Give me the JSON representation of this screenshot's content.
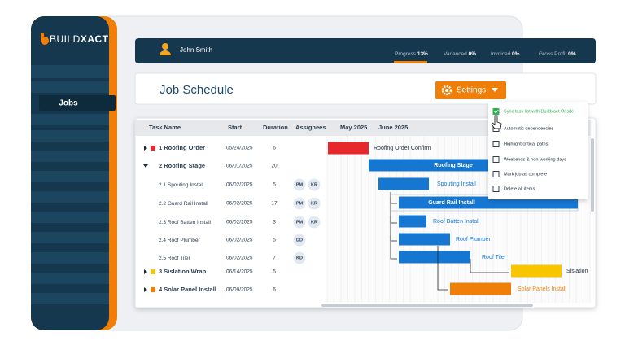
{
  "brand": {
    "prefix": "BUILD",
    "suffix": "XACT"
  },
  "sidebar": {
    "items": [
      "Jobs"
    ]
  },
  "header": {
    "user": "John Smith",
    "stats": [
      {
        "label": "Progress",
        "value": "13%"
      },
      {
        "label": "Varianced",
        "value": "0%"
      },
      {
        "label": "Invoiced",
        "value": "0%"
      },
      {
        "label": "Gross Profit",
        "value": "0%"
      }
    ]
  },
  "page": {
    "title": "Job Schedule",
    "settings_button": "Settings"
  },
  "settings_menu": {
    "items": [
      {
        "label": "Sync task list with Buildxact Onsite",
        "checked": true
      },
      {
        "label": "Automatic dependencies",
        "checked": false
      },
      {
        "label": "Highlight critical paths",
        "checked": false
      },
      {
        "label": "Weekends & non-working days",
        "checked": false
      },
      {
        "label": "Mark job as complete",
        "checked": false
      },
      {
        "label": "Delete all items",
        "checked": false
      }
    ]
  },
  "table": {
    "columns": [
      "Task Name",
      "Start",
      "Duration",
      "Assignees"
    ],
    "months": [
      "May 2025",
      "June 2025"
    ],
    "rows": [
      {
        "id": "1",
        "name": "Roofing Order",
        "start": "05/24/2025",
        "duration": 6,
        "color": "#e8272b",
        "expanded": false
      },
      {
        "id": "2",
        "name": "Roofing Stage",
        "start": "06/01/2025",
        "duration": 20,
        "expanded": true
      },
      {
        "id": "2.1",
        "name": "Spouting Install",
        "start": "06/02/2025",
        "duration": 5,
        "assignees": [
          "PM",
          "KR"
        ]
      },
      {
        "id": "2.2",
        "name": "Guard Rail Install",
        "start": "06/02/2025",
        "duration": 17,
        "assignees": [
          "PM",
          "KR"
        ]
      },
      {
        "id": "2.3",
        "name": "Roof Batten Install",
        "start": "06/02/2025",
        "duration": 3,
        "assignees": [
          "PM",
          "KR"
        ]
      },
      {
        "id": "2.4",
        "name": "Roof Plumber",
        "start": "06/02/2025",
        "duration": 5,
        "assignees": [
          "DD"
        ]
      },
      {
        "id": "2.5",
        "name": "Roof Tiler",
        "start": "06/02/2025",
        "duration": 7,
        "assignees": [
          "KD"
        ]
      },
      {
        "id": "3",
        "name": "Sislation Wrap",
        "start": "06/14/2025",
        "duration": 5,
        "color": "#f7c600",
        "expanded": false
      },
      {
        "id": "4",
        "name": "Solar Panel Install",
        "start": "06/09/2025",
        "duration": 6,
        "color": "#f07f0a",
        "expanded": false
      }
    ]
  },
  "gantt": {
    "bars": [
      {
        "label": "Roofing Order Confirm",
        "color": "#e8272b"
      },
      {
        "label": "Roofing Stage",
        "color": "#1677d2"
      },
      {
        "label": "Spouting Install",
        "color": "#1677d2"
      },
      {
        "label": "Guard Rail Install",
        "color": "#1677d2"
      },
      {
        "label": "Roof Batten Install",
        "color": "#1677d2"
      },
      {
        "label": "Roof Plumber",
        "color": "#1677d2"
      },
      {
        "label": "Roof Tiler",
        "color": "#1677d2"
      },
      {
        "label": "Sislation",
        "color": "#f7c600"
      },
      {
        "label": "Solar Panels Install",
        "color": "#f07f0a"
      }
    ]
  }
}
